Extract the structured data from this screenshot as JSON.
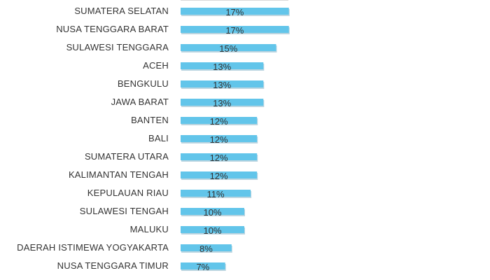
{
  "chart_data": {
    "type": "bar",
    "orientation": "horizontal",
    "categories": [
      "SUMATERA SELATAN",
      "NUSA TENGGARA BARAT",
      "SULAWESI TENGGARA",
      "ACEH",
      "BENGKULU",
      "JAWA BARAT",
      "BANTEN",
      "BALI",
      "SUMATERA UTARA",
      "KALIMANTAN TENGAH",
      "KEPULAUAN RIAU",
      "SULAWESI TENGAH",
      "MALUKU",
      "DAERAH ISTIMEWA YOGYAKARTA",
      "NUSA TENGGARA TIMUR"
    ],
    "values": [
      17,
      17,
      15,
      13,
      13,
      13,
      12,
      12,
      12,
      12,
      11,
      10,
      10,
      8,
      7
    ],
    "value_labels": [
      "17%",
      "17%",
      "15%",
      "13%",
      "13%",
      "13%",
      "12%",
      "12%",
      "12%",
      "12%",
      "11%",
      "10%",
      "10%",
      "8%",
      "7%"
    ],
    "title": "",
    "xlabel": "",
    "ylabel": "",
    "xlim": [
      0,
      17
    ],
    "grid": false,
    "legend": "none",
    "bar_color": "#62c5ea",
    "bar_shadow_color": "#3b87a6"
  }
}
